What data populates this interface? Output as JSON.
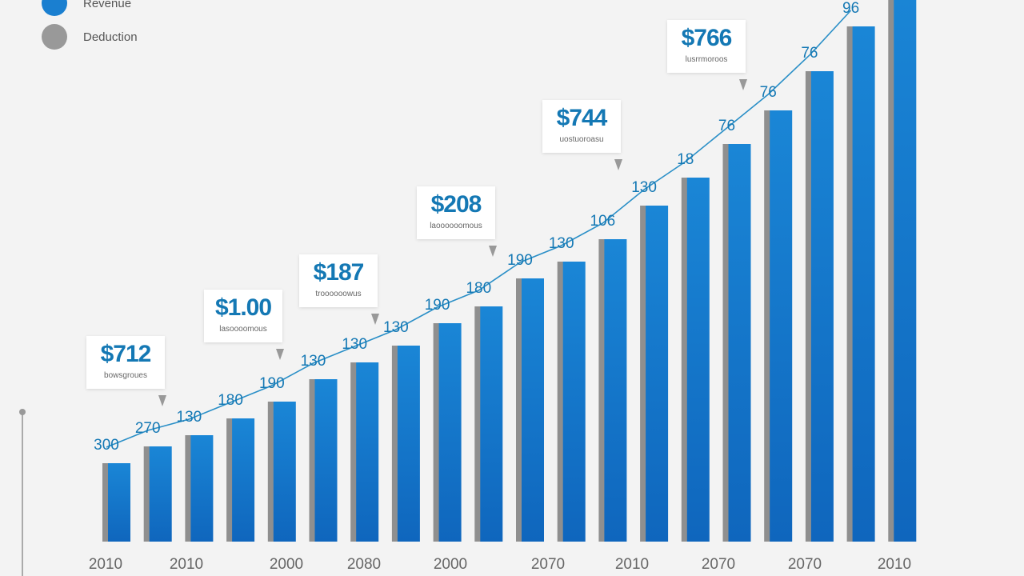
{
  "legend": [
    {
      "label": "Revenue",
      "color": "#1a7fd0"
    },
    {
      "label": "Deduction",
      "color": "#999999"
    }
  ],
  "colors": {
    "bar": "#1677cc",
    "bar_side": "#8f8f8f",
    "line": "#2a8fc7",
    "label": "#1478b4"
  },
  "chart_data": {
    "type": "bar",
    "title": "",
    "xlabel": "",
    "ylabel": "",
    "grid": false,
    "legend_position": "top-left",
    "values": [
      14,
      17,
      19,
      22,
      25,
      29,
      32,
      35,
      39,
      42,
      47,
      50,
      54,
      60,
      65,
      71,
      77,
      84,
      92,
      100
    ],
    "x_tick_labels": [
      "2010",
      "2010",
      "2000",
      "2080",
      "2000",
      "2070",
      "2010",
      "2070",
      "2070",
      "2010"
    ],
    "line_labels": [
      "300",
      "270",
      "130",
      "180",
      "190",
      "130",
      "130",
      "130",
      "190",
      "180",
      "190",
      "130",
      "106",
      "130",
      "18",
      "76",
      "76",
      "76",
      "96"
    ],
    "callouts": [
      {
        "value": "$712",
        "caption": "bowsgroues"
      },
      {
        "value": "$1.00",
        "caption": "lasoooomous"
      },
      {
        "value": "$187",
        "caption": "troooooowus"
      },
      {
        "value": "$208",
        "caption": "laoooooomous"
      },
      {
        "value": "$744",
        "caption": "uostuoroasu"
      },
      {
        "value": "$766",
        "caption": "lusrrmoroos"
      }
    ]
  }
}
